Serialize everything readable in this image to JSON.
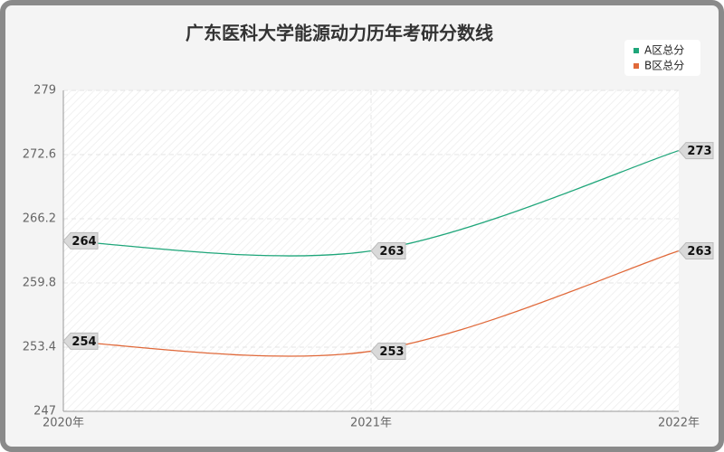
{
  "chart_data": {
    "type": "line",
    "title": "广东医科大学能源动力历年考研分数线",
    "categories": [
      "2020年",
      "2021年",
      "2022年"
    ],
    "series": [
      {
        "name": "A区总分",
        "color": "#1fa67a",
        "values": [
          264,
          263,
          273
        ]
      },
      {
        "name": "B区总分",
        "color": "#e0693a",
        "values": [
          254,
          253,
          263
        ]
      }
    ],
    "ylim": [
      247,
      279
    ],
    "yticks": [
      247,
      253.4,
      259.8,
      266.2,
      272.6,
      279
    ],
    "grid": true,
    "legend": "top-right"
  }
}
